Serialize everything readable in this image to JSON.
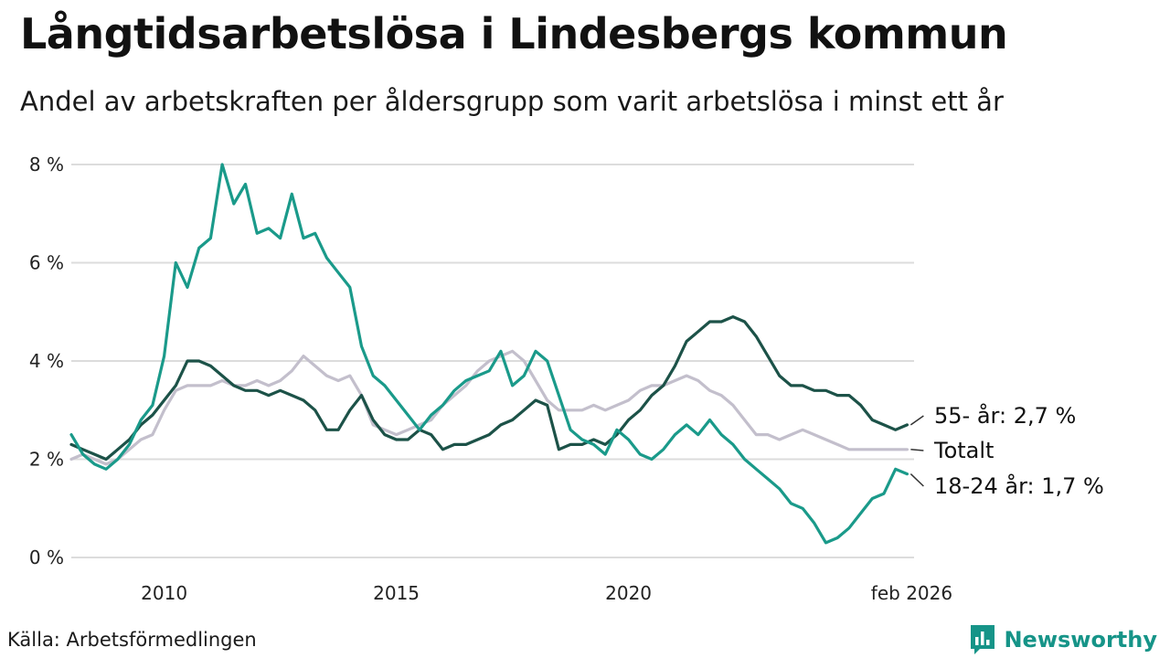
{
  "title": "Långtidsarbetslösa i Lindesbergs kommun",
  "subtitle": "Andel av arbetskraften per åldersgrupp som varit arbetslösa i minst ett år",
  "source": "Källa: Arbetsförmedlingen",
  "brand": "Newsworthy",
  "chart_data": {
    "type": "line",
    "x_start": 2008.0,
    "x_step": 0.25,
    "xlim": [
      2008.0,
      2026.15
    ],
    "ylim": [
      0,
      8
    ],
    "y_ticks": [
      0,
      2,
      4,
      6,
      8
    ],
    "y_tick_labels": [
      "0 %",
      "2 %",
      "4 %",
      "6 %",
      "8 %"
    ],
    "x_ticks": [
      2010,
      2015,
      2020,
      2026.1
    ],
    "x_tick_labels": [
      "2010",
      "2015",
      "2020",
      "feb 2026"
    ],
    "grid": true,
    "series": [
      {
        "name": "Totalt",
        "label": "Totalt",
        "color": "#c3bfcc",
        "values": [
          2.0,
          2.1,
          2.0,
          1.9,
          2.0,
          2.2,
          2.4,
          2.5,
          3.0,
          3.4,
          3.5,
          3.5,
          3.5,
          3.6,
          3.5,
          3.5,
          3.6,
          3.5,
          3.6,
          3.8,
          4.1,
          3.9,
          3.7,
          3.6,
          3.7,
          3.3,
          2.7,
          2.6,
          2.5,
          2.6,
          2.7,
          2.8,
          3.1,
          3.3,
          3.5,
          3.8,
          4.0,
          4.1,
          4.2,
          4.0,
          3.6,
          3.2,
          3.0,
          3.0,
          3.0,
          3.1,
          3.0,
          3.1,
          3.2,
          3.4,
          3.5,
          3.5,
          3.6,
          3.7,
          3.6,
          3.4,
          3.3,
          3.1,
          2.8,
          2.5,
          2.5,
          2.4,
          2.5,
          2.6,
          2.5,
          2.4,
          2.3,
          2.2,
          2.2,
          2.2,
          2.2,
          2.2,
          2.2
        ]
      },
      {
        "name": "55- år",
        "label": "55- år: 2,7 %",
        "color": "#1c5248",
        "values": [
          2.3,
          2.2,
          2.1,
          2.0,
          2.2,
          2.4,
          2.7,
          2.9,
          3.2,
          3.5,
          4.0,
          4.0,
          3.9,
          3.7,
          3.5,
          3.4,
          3.4,
          3.3,
          3.4,
          3.3,
          3.2,
          3.0,
          2.6,
          2.6,
          3.0,
          3.3,
          2.8,
          2.5,
          2.4,
          2.4,
          2.6,
          2.5,
          2.2,
          2.3,
          2.3,
          2.4,
          2.5,
          2.7,
          2.8,
          3.0,
          3.2,
          3.1,
          2.2,
          2.3,
          2.3,
          2.4,
          2.3,
          2.5,
          2.8,
          3.0,
          3.3,
          3.5,
          3.9,
          4.4,
          4.6,
          4.8,
          4.8,
          4.9,
          4.8,
          4.5,
          4.1,
          3.7,
          3.5,
          3.5,
          3.4,
          3.4,
          3.3,
          3.3,
          3.1,
          2.8,
          2.7,
          2.6,
          2.7
        ]
      },
      {
        "name": "18-24 år",
        "label": "18-24 år: 1,7 %",
        "color": "#1a9a8a",
        "values": [
          2.5,
          2.1,
          1.9,
          1.8,
          2.0,
          2.3,
          2.8,
          3.1,
          4.1,
          6.0,
          5.5,
          6.3,
          6.5,
          8.0,
          7.2,
          7.6,
          6.6,
          6.7,
          6.5,
          7.4,
          6.5,
          6.6,
          6.1,
          5.8,
          5.5,
          4.3,
          3.7,
          3.5,
          3.2,
          2.9,
          2.6,
          2.9,
          3.1,
          3.4,
          3.6,
          3.7,
          3.8,
          4.2,
          3.5,
          3.7,
          4.2,
          4.0,
          3.3,
          2.6,
          2.4,
          2.3,
          2.1,
          2.6,
          2.4,
          2.1,
          2.0,
          2.2,
          2.5,
          2.7,
          2.5,
          2.8,
          2.5,
          2.3,
          2.0,
          1.8,
          1.6,
          1.4,
          1.1,
          1.0,
          0.7,
          0.3,
          0.4,
          0.6,
          0.9,
          1.2,
          1.3,
          1.8,
          1.7
        ]
      }
    ]
  }
}
